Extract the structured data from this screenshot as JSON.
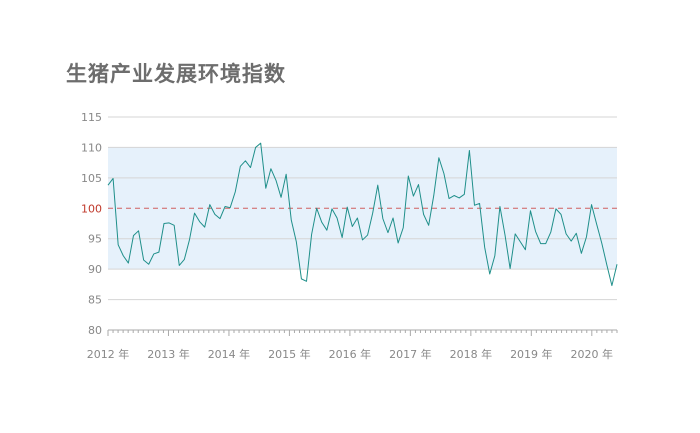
{
  "chart_data": {
    "type": "line",
    "title": "生猪产业发展环境指数",
    "xlabel": "",
    "ylabel": "",
    "ylim": [
      80,
      115
    ],
    "y_ticks": [
      115,
      110,
      105,
      100,
      95,
      90,
      85,
      80
    ],
    "x_tick_labels": [
      "2012 年",
      "2013 年",
      "2014 年",
      "2015 年",
      "2016 年",
      "2017 年",
      "2018 年",
      "2019 年",
      "2020 年"
    ],
    "x_start": "2012-01",
    "x_end": "2020-06",
    "reference_line": 100,
    "shaded_band": [
      90,
      110
    ],
    "grid": true,
    "colors": {
      "line": "#1f8f8a",
      "band": "#e6f1fb",
      "reference": "#d06060",
      "grid": "#d5d5d5",
      "axis": "#aaaaaa",
      "ref_label": "#c0392b"
    },
    "series": [
      {
        "values": [
          103.8,
          104.9,
          94.0,
          92.2,
          91.0,
          95.5,
          96.3,
          91.5,
          90.8,
          92.5,
          92.8,
          97.5,
          97.6,
          97.2,
          90.6,
          91.6,
          94.8,
          99.2,
          97.8,
          96.9,
          100.6,
          99.0,
          98.3,
          100.3,
          100.1,
          102.7,
          106.9,
          107.8,
          106.7,
          110.0,
          110.7,
          103.3,
          106.5,
          104.6,
          101.8,
          105.6,
          98.1,
          94.5,
          88.4,
          88.0,
          95.7,
          100.0,
          97.7,
          96.4,
          99.9,
          98.4,
          95.2,
          100.2,
          97.0,
          98.4,
          94.8,
          95.6,
          99.2,
          103.8,
          98.3,
          96.0,
          98.4,
          94.3,
          96.8,
          105.3,
          102.0,
          103.9,
          99.0,
          97.2,
          102.1,
          108.3,
          105.7,
          101.6,
          102.1,
          101.7,
          102.3,
          109.5,
          100.5,
          100.8,
          93.6,
          89.2,
          92.2,
          100.3,
          95.6,
          90.1,
          95.8,
          94.5,
          93.2,
          99.6,
          96.2,
          94.2,
          94.2,
          96.1,
          99.9,
          99.0,
          95.8,
          94.6,
          95.9,
          92.6,
          95.3,
          100.6,
          97.4,
          94.3,
          90.7,
          87.3,
          90.8
        ]
      }
    ]
  }
}
